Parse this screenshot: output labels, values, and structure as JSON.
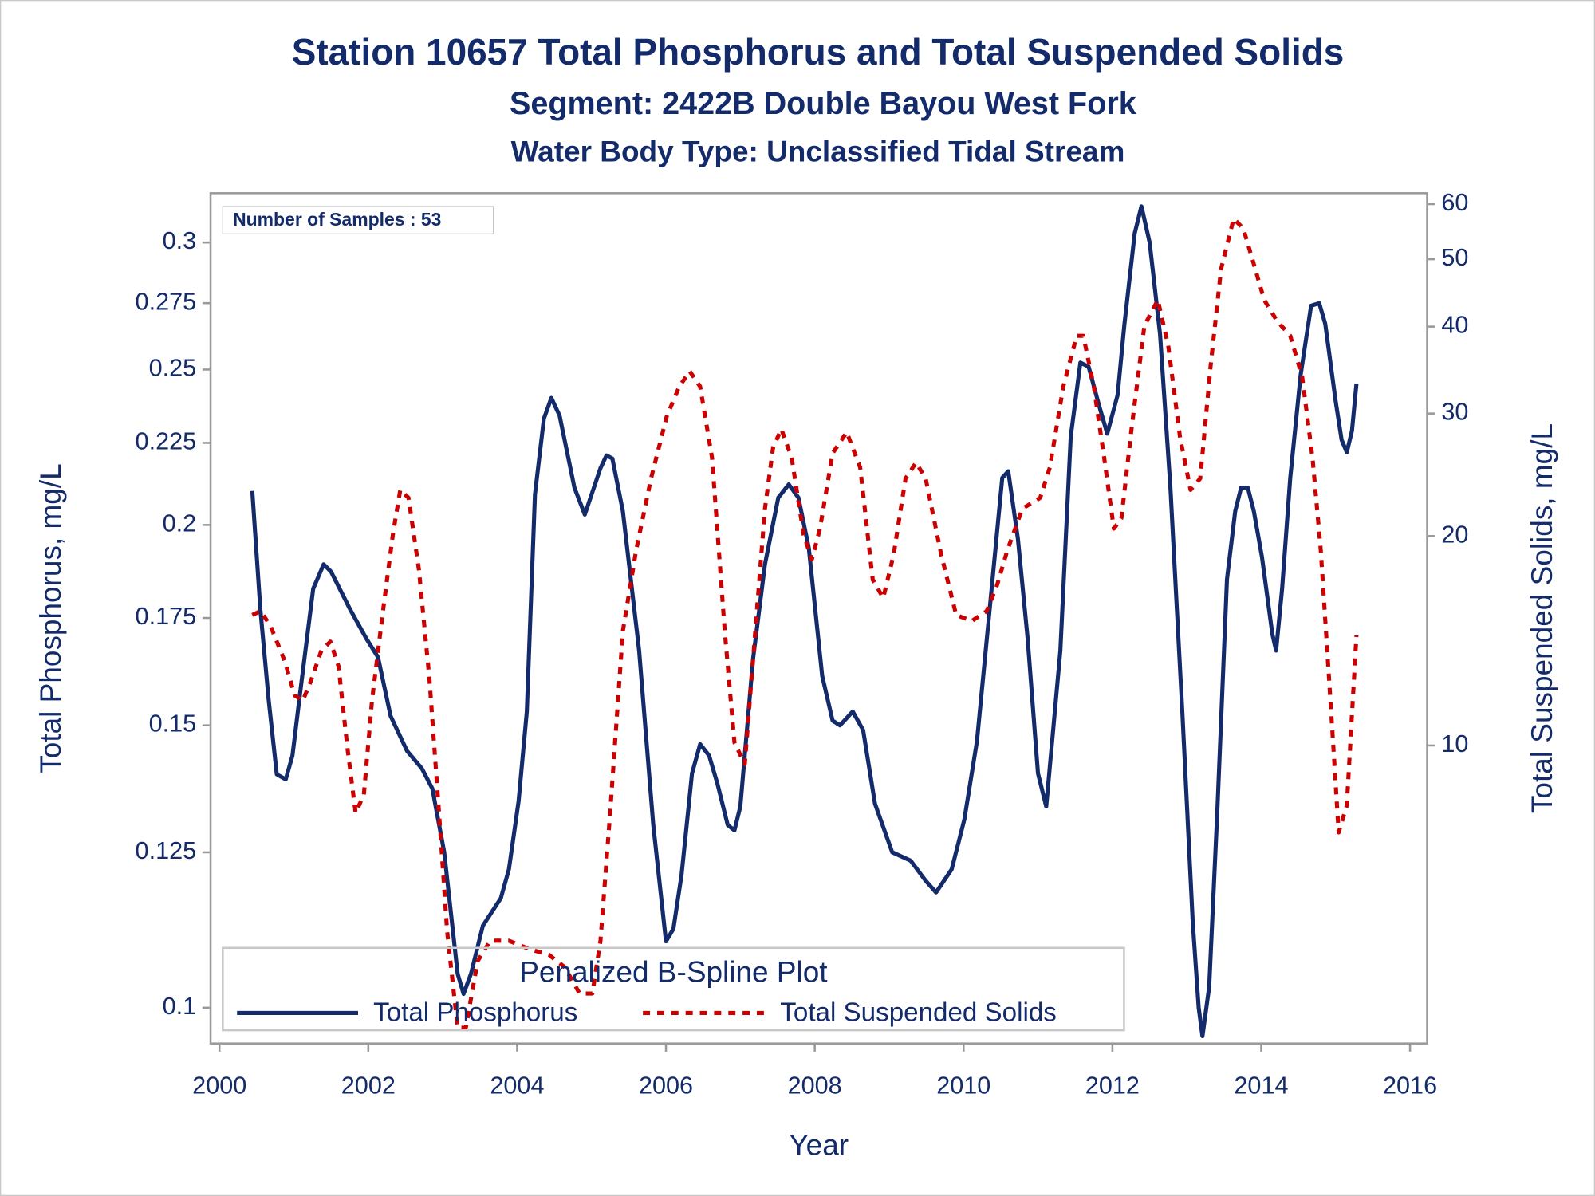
{
  "chart_data": {
    "type": "line",
    "title": "Station 10657  Total Phosphorus and Total Suspended Solids",
    "subtitle": "Segment: 2422B  Double Bayou West Fork",
    "subtitle2": "Water Body Type: Unclassified Tidal Stream",
    "annotation": "Number of Samples : 53",
    "legend_title": "Penalized B-Spline Plot",
    "xlabel": "Year",
    "ylabel": "Total Phosphorus, mg/L",
    "y2label": "Total Suspended Solids, mg/L",
    "xlim": [
      1999.88,
      2016.23
    ],
    "xticks": [
      2000,
      2002,
      2004,
      2006,
      2008,
      2010,
      2012,
      2014,
      2016
    ],
    "ylim": [
      0.095,
      0.322
    ],
    "yticks": [
      0.1,
      0.125,
      0.15,
      0.175,
      0.2,
      0.225,
      0.25,
      0.275,
      0.3
    ],
    "ylog": true,
    "y2lim": [
      3.73,
      62.2
    ],
    "y2ticks": [
      10,
      20,
      30,
      40,
      50,
      60
    ],
    "y2log": true,
    "legend_position": "bottom",
    "series": [
      {
        "name": "Total Phosphorus",
        "color": "#132b6b",
        "line_style": "solid",
        "x": [
          2000.44,
          2000.55,
          2000.66,
          2000.77,
          2000.89,
          2000.98,
          2001.09,
          2001.26,
          2001.4,
          2001.5,
          2001.76,
          2001.97,
          2002.13,
          2002.3,
          2002.52,
          2002.72,
          2002.86,
          2003.02,
          2003.2,
          2003.28,
          2003.38,
          2003.54,
          2003.78,
          2003.89,
          2004.02,
          2004.13,
          2004.24,
          2004.36,
          2004.46,
          2004.57,
          2004.77,
          2004.91,
          2005.12,
          2005.2,
          2005.28,
          2005.42,
          2005.64,
          2005.83,
          2006.0,
          2006.1,
          2006.21,
          2006.35,
          2006.46,
          2006.58,
          2006.69,
          2006.83,
          2006.92,
          2007.0,
          2007.17,
          2007.33,
          2007.51,
          2007.65,
          2007.78,
          2007.92,
          2008.1,
          2008.24,
          2008.34,
          2008.51,
          2008.65,
          2008.81,
          2009.04,
          2009.29,
          2009.49,
          2009.63,
          2009.84,
          2010.01,
          2010.18,
          2010.34,
          2010.52,
          2010.6,
          2010.73,
          2010.86,
          2011.0,
          2011.11,
          2011.3,
          2011.44,
          2011.57,
          2011.68,
          2011.82,
          2011.93,
          2012.07,
          2012.16,
          2012.3,
          2012.39,
          2012.5,
          2012.64,
          2012.78,
          2012.94,
          2013.08,
          2013.16,
          2013.21,
          2013.3,
          2013.41,
          2013.54,
          2013.65,
          2013.73,
          2013.82,
          2013.9,
          2014.01,
          2014.15,
          2014.2,
          2014.28,
          2014.39,
          2014.53,
          2014.67,
          2014.78,
          2014.86,
          2015.0,
          2015.08,
          2015.15,
          2015.22,
          2015.28
        ],
        "values": [
          0.21,
          0.177,
          0.1556,
          0.1398,
          0.1388,
          0.1436,
          0.158,
          0.1825,
          0.189,
          0.187,
          0.177,
          0.17,
          0.1654,
          0.152,
          0.1446,
          0.141,
          0.137,
          0.125,
          0.105,
          0.102,
          0.105,
          0.1125,
          0.117,
          0.122,
          0.1345,
          0.153,
          0.209,
          0.233,
          0.24,
          0.234,
          0.211,
          0.203,
          0.217,
          0.221,
          0.22,
          0.204,
          0.167,
          0.13,
          0.11,
          0.112,
          0.121,
          0.14,
          0.146,
          0.1436,
          0.138,
          0.13,
          0.129,
          0.1335,
          0.165,
          0.189,
          0.208,
          0.212,
          0.208,
          0.1935,
          0.161,
          0.151,
          0.15,
          0.153,
          0.149,
          0.134,
          0.125,
          0.1235,
          0.12,
          0.118,
          0.122,
          0.131,
          0.1466,
          0.175,
          0.214,
          0.216,
          0.196,
          0.17,
          0.14,
          0.1335,
          0.167,
          0.227,
          0.2525,
          0.251,
          0.2375,
          0.228,
          0.241,
          0.2665,
          0.304,
          0.316,
          0.3,
          0.263,
          0.211,
          0.153,
          0.113,
          0.1,
          0.096,
          0.103,
          0.1325,
          0.185,
          0.204,
          0.211,
          0.211,
          0.204,
          0.191,
          0.171,
          0.167,
          0.1825,
          0.214,
          0.248,
          0.274,
          0.275,
          0.267,
          0.239,
          0.226,
          0.222,
          0.229,
          0.245
        ]
      },
      {
        "name": "Total Suspended Solids",
        "color": "#cc0000",
        "line_style": "dashed",
        "axis": "y2",
        "x": [
          2000.44,
          2000.55,
          2000.68,
          2000.88,
          2001.01,
          2001.12,
          2001.23,
          2001.37,
          2001.49,
          2001.6,
          2001.72,
          2001.83,
          2001.94,
          2002.05,
          2002.19,
          2002.33,
          2002.43,
          2002.54,
          2002.68,
          2002.82,
          2002.95,
          2003.06,
          2003.2,
          2003.31,
          2003.47,
          2003.64,
          2003.89,
          2004.16,
          2004.43,
          2004.64,
          2004.84,
          2005.01,
          2005.12,
          2005.25,
          2005.42,
          2005.6,
          2005.8,
          2006.01,
          2006.18,
          2006.32,
          2006.46,
          2006.62,
          2006.79,
          2006.92,
          2007.06,
          2007.2,
          2007.33,
          2007.44,
          2007.55,
          2007.69,
          2007.85,
          2007.96,
          2008.07,
          2008.24,
          2008.43,
          2008.61,
          2008.78,
          2008.92,
          2009.06,
          2009.22,
          2009.36,
          2009.49,
          2009.7,
          2009.9,
          2010.11,
          2010.31,
          2010.45,
          2010.59,
          2010.79,
          2011.03,
          2011.16,
          2011.34,
          2011.52,
          2011.61,
          2011.75,
          2011.89,
          2012.02,
          2012.12,
          2012.26,
          2012.43,
          2012.61,
          2012.75,
          2012.91,
          2013.05,
          2013.18,
          2013.32,
          2013.46,
          2013.63,
          2013.76,
          2013.9,
          2014.04,
          2014.21,
          2014.39,
          2014.55,
          2014.69,
          2014.8,
          2014.94,
          2015.04,
          2015.15,
          2015.28
        ],
        "values": [
          15.4,
          15.6,
          14.9,
          13.2,
          11.8,
          11.6,
          12.4,
          13.7,
          14.1,
          13.0,
          9.9,
          8.0,
          8.5,
          11.6,
          15.4,
          20.1,
          23.3,
          22.7,
          17.9,
          12.5,
          8.0,
          5.4,
          3.93,
          3.93,
          4.9,
          5.24,
          5.24,
          5.1,
          5.0,
          4.8,
          4.4,
          4.4,
          5.24,
          8.0,
          14.6,
          19.1,
          24.2,
          29.7,
          32.8,
          34.5,
          32.8,
          25.9,
          14.6,
          10.1,
          9.4,
          14.6,
          21.9,
          26.8,
          28.5,
          25.9,
          20.1,
          18.5,
          20.5,
          26.3,
          28.2,
          25.1,
          17.3,
          16.3,
          18.8,
          24.2,
          25.5,
          24.2,
          18.8,
          15.4,
          15.1,
          15.6,
          17.0,
          19.1,
          21.9,
          22.7,
          25.1,
          32.8,
          38.8,
          38.8,
          32.8,
          25.9,
          20.5,
          21.2,
          28.7,
          40.1,
          43.7,
          37.6,
          27.7,
          23.3,
          24.2,
          35.1,
          48.4,
          57.2,
          55.3,
          49.2,
          43.7,
          40.8,
          38.8,
          33.9,
          25.9,
          19.1,
          11.2,
          7.5,
          8.2,
          14.4
        ]
      }
    ]
  }
}
